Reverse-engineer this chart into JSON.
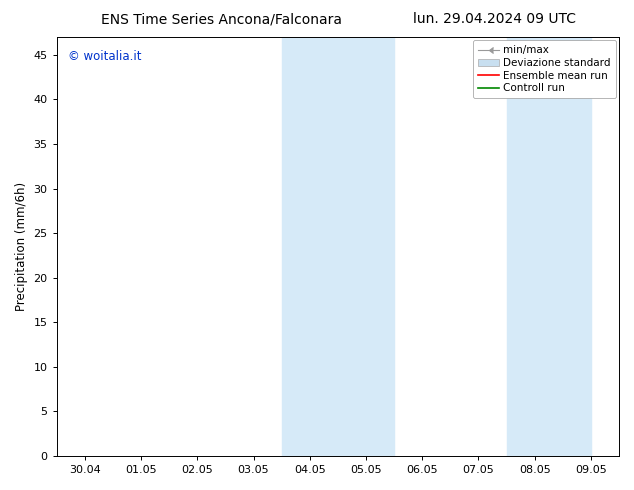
{
  "title_left": "ENS Time Series Ancona/Falconara",
  "title_right": "lun. 29.04.2024 09 UTC",
  "ylabel": "Precipitation (mm/6h)",
  "watermark": "© woitalia.it",
  "watermark_color": "#0033cc",
  "ylim": [
    0,
    47
  ],
  "yticks": [
    0,
    5,
    10,
    15,
    20,
    25,
    30,
    35,
    40,
    45
  ],
  "xtick_labels": [
    "30.04",
    "01.05",
    "02.05",
    "03.05",
    "04.05",
    "05.05",
    "06.05",
    "07.05",
    "08.05",
    "09.05"
  ],
  "xtick_positions": [
    0,
    1,
    2,
    3,
    4,
    5,
    6,
    7,
    8,
    9
  ],
  "xlim": [
    -0.5,
    9.5
  ],
  "shaded_regions": [
    {
      "xmin": 3.5,
      "xmax": 5.5,
      "color": "#d6eaf8"
    },
    {
      "xmin": 7.5,
      "xmax": 9.0,
      "color": "#d6eaf8"
    }
  ],
  "bg_color": "#ffffff",
  "legend_entries": [
    {
      "label": "min/max",
      "color": "#aaaaaa",
      "type": "minmax"
    },
    {
      "label": "Deviazione standard",
      "color": "#c8dff0",
      "type": "fill"
    },
    {
      "label": "Ensemble mean run",
      "color": "#ff0000",
      "type": "line"
    },
    {
      "label": "Controll run",
      "color": "#008800",
      "type": "line"
    }
  ],
  "title_fontsize": 10,
  "tick_fontsize": 8,
  "ylabel_fontsize": 8.5,
  "watermark_fontsize": 8.5,
  "legend_fontsize": 7.5
}
